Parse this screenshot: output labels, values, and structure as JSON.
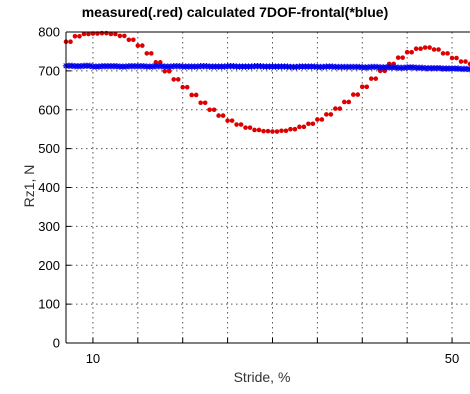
{
  "chart_data": {
    "type": "line",
    "title": "measured(.red) calculated 7DOF-frontal(*blue)",
    "xlabel": "Stride, %",
    "ylabel": "Rz1, N",
    "xlim": [
      7,
      52
    ],
    "ylim": [
      0,
      800
    ],
    "x_ticks": [
      10,
      50
    ],
    "x_tick_labels": [
      "10",
      "50"
    ],
    "x_grid": [
      10,
      15,
      20,
      25,
      30,
      35,
      40,
      45,
      50
    ],
    "y_ticks": [
      0,
      100,
      200,
      300,
      400,
      500,
      600,
      700,
      800
    ],
    "y_tick_labels": [
      "0",
      "100",
      "200",
      "300",
      "400",
      "500",
      "600",
      "700",
      "800"
    ],
    "grid": true,
    "grid_style": "dotted",
    "series": [
      {
        "name": "measured",
        "marker": "dot",
        "color": "#dd0000",
        "x": [
          7,
          8,
          9,
          10,
          11,
          12,
          13,
          14,
          15,
          16,
          17,
          18,
          19,
          20,
          21,
          22,
          23,
          24,
          25,
          26,
          27,
          28,
          29,
          30,
          31,
          32,
          33,
          34,
          35,
          36,
          37,
          38,
          39,
          40,
          41,
          42,
          43,
          44,
          45,
          46,
          47,
          48,
          49,
          50,
          51,
          52
        ],
        "values": [
          775,
          789,
          795,
          796,
          797,
          795,
          790,
          780,
          765,
          745,
          722,
          699,
          678,
          658,
          638,
          618,
          600,
          585,
          572,
          562,
          554,
          548,
          545,
          544,
          546,
          550,
          556,
          564,
          575,
          588,
          603,
          620,
          639,
          659,
          680,
          700,
          718,
          734,
          748,
          757,
          760,
          755,
          745,
          733,
          724,
          718
        ]
      },
      {
        "name": "calculated 7DOF-frontal",
        "marker": "star",
        "color": "#0000ee",
        "x": [
          7,
          8,
          9,
          10,
          11,
          12,
          13,
          14,
          15,
          16,
          17,
          18,
          19,
          20,
          21,
          22,
          23,
          24,
          25,
          26,
          27,
          28,
          29,
          30,
          31,
          32,
          33,
          34,
          35,
          36,
          37,
          38,
          39,
          40,
          41,
          42,
          43,
          44,
          45,
          46,
          47,
          48,
          49,
          50,
          51,
          52
        ],
        "values": [
          713,
          712,
          713,
          711,
          712,
          712,
          711,
          712,
          712,
          711,
          712,
          711,
          712,
          711,
          711,
          712,
          711,
          711,
          712,
          711,
          711,
          712,
          711,
          711,
          711,
          710,
          711,
          711,
          710,
          711,
          710,
          710,
          710,
          709,
          710,
          709,
          709,
          708,
          709,
          708,
          707,
          707,
          706,
          706,
          705,
          704
        ]
      }
    ]
  }
}
